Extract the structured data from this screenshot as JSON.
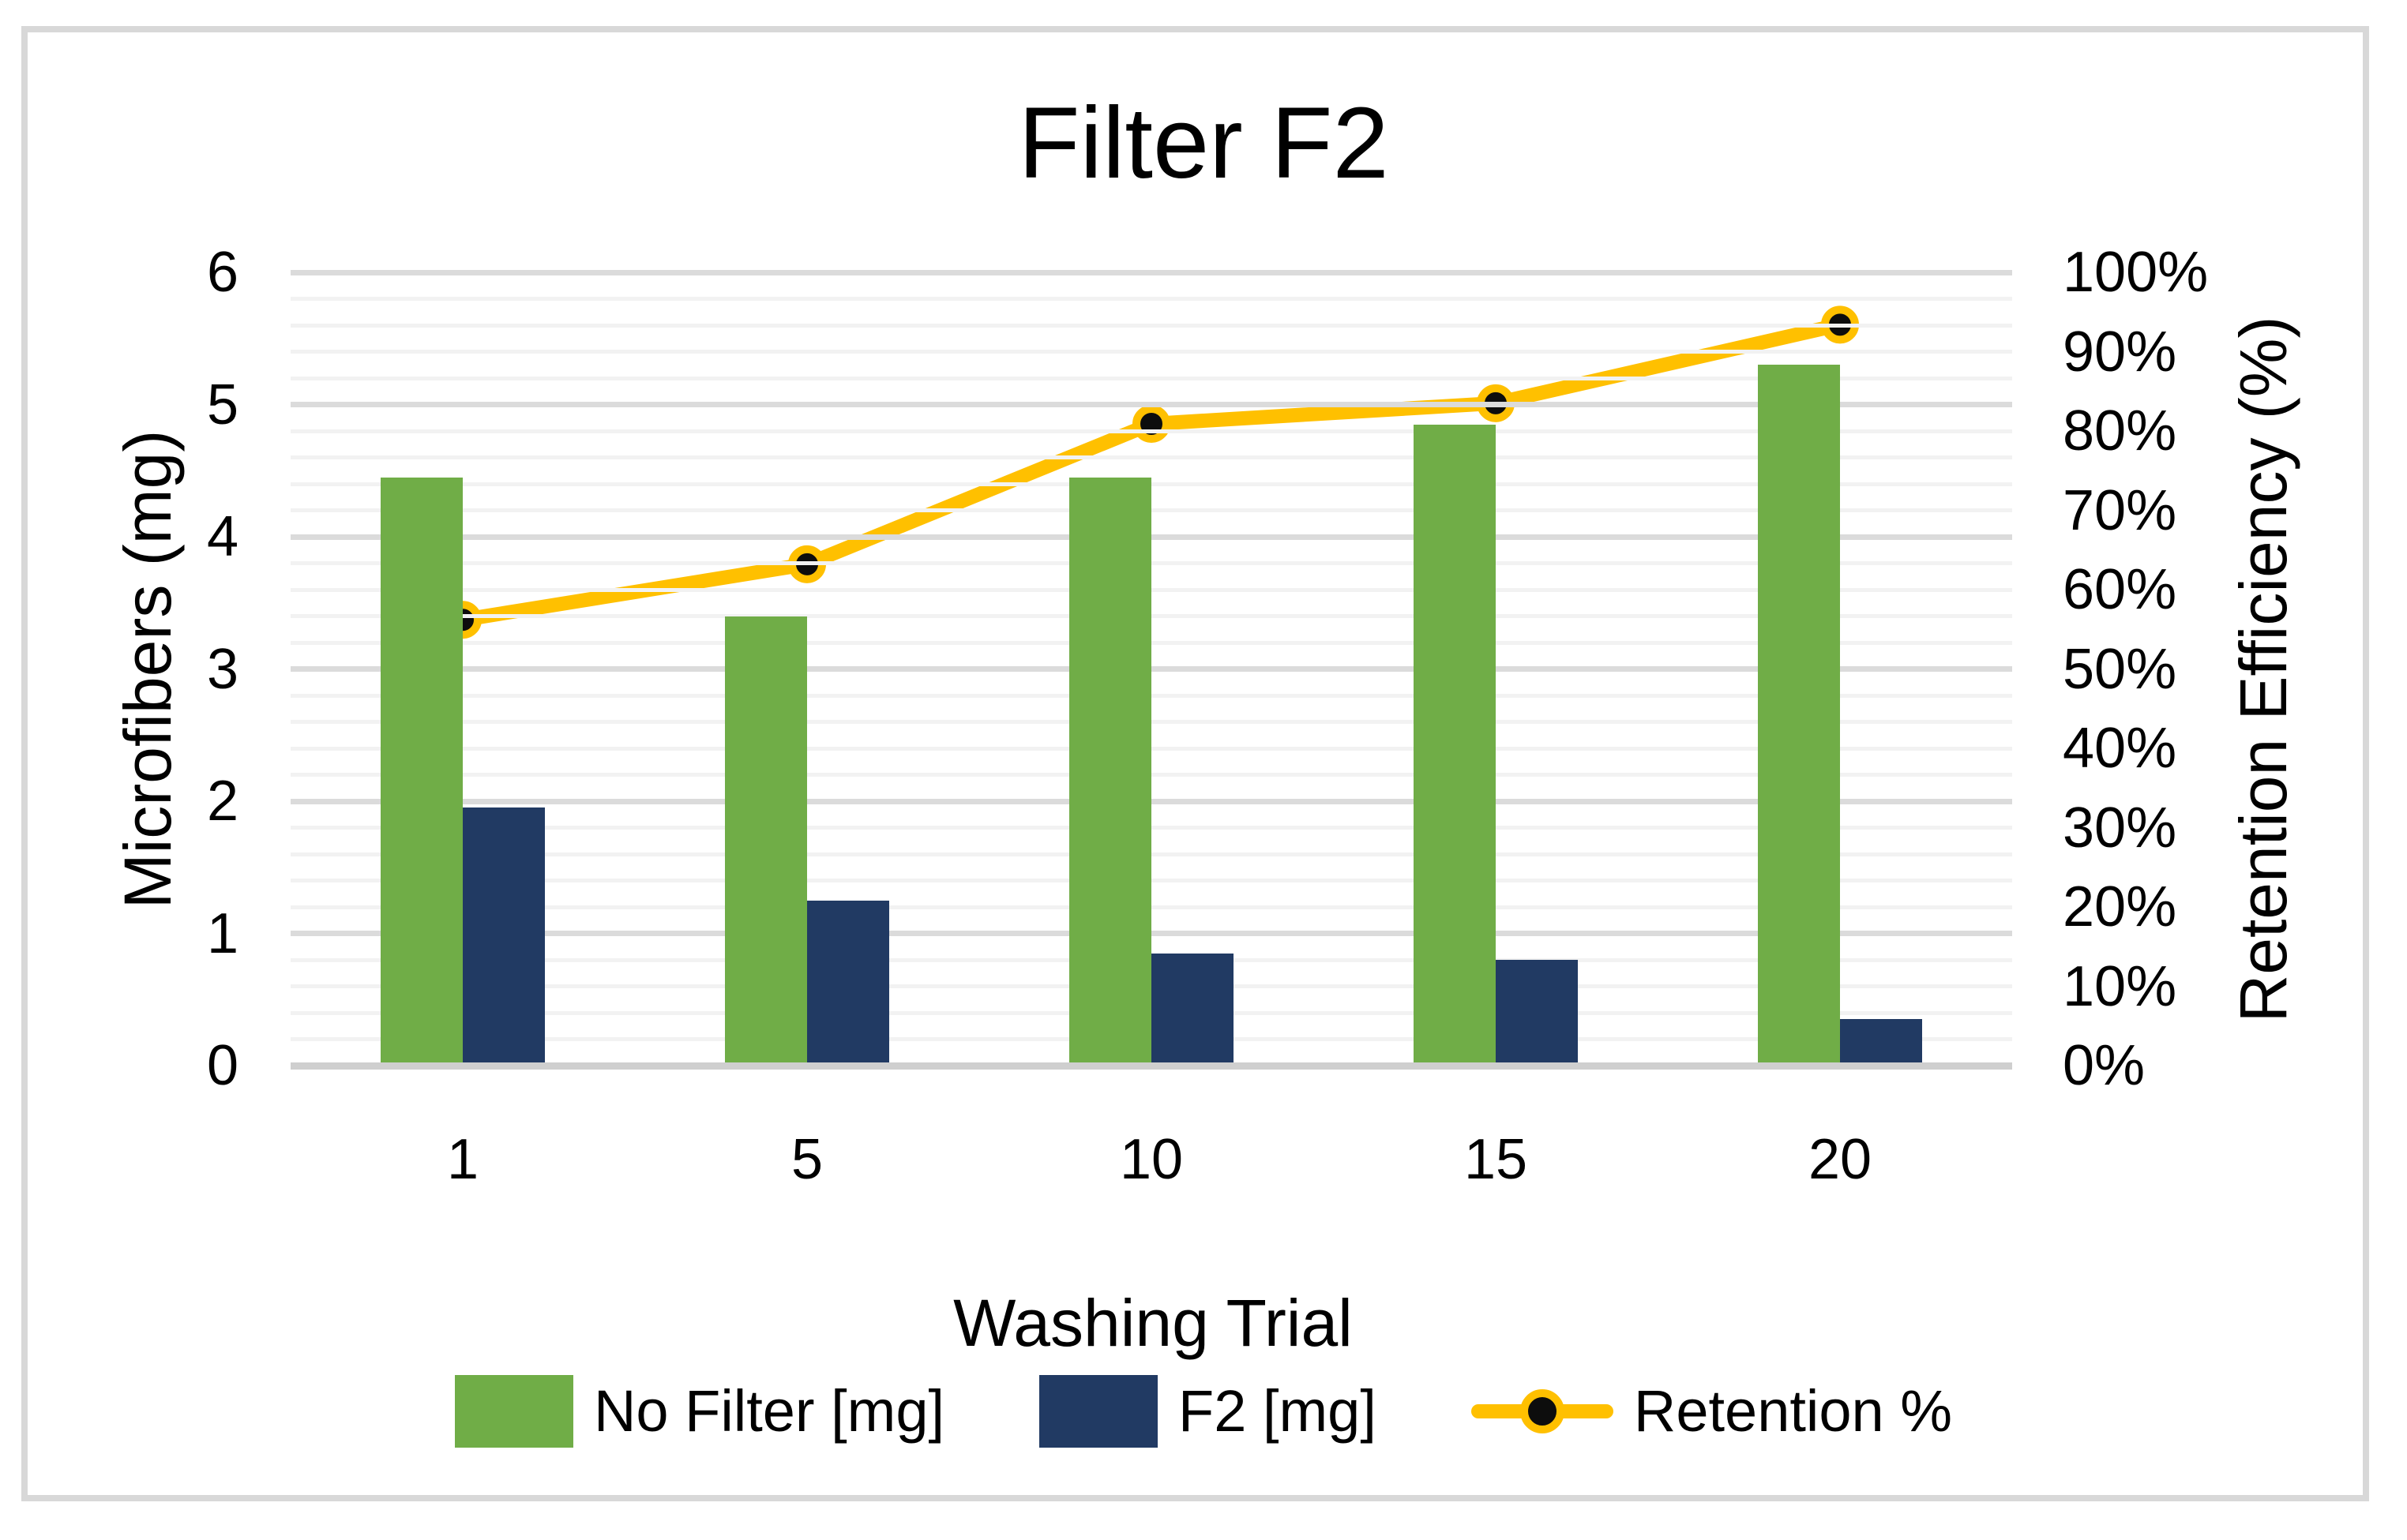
{
  "window": {
    "background": "#FFFFFF",
    "frame_border_color": "#D8D8D8"
  },
  "chart_data": {
    "type": "bar",
    "combo": "clustered columns + line on secondary axis",
    "title": "Filter F2",
    "xlabel": "Washing Trial",
    "ylabel_left": "Microfibers (mg)",
    "ylabel_right": "Retention Efficiency (%)",
    "categories": [
      "1",
      "5",
      "10",
      "15",
      "20"
    ],
    "series": [
      {
        "name": "No Filter [mg]",
        "type": "bar",
        "axis": "left",
        "color": "#70AD47",
        "values": [
          4.45,
          3.4,
          4.45,
          4.85,
          5.3
        ]
      },
      {
        "name": "F2 [mg]",
        "type": "bar",
        "axis": "left",
        "color": "#213A63",
        "values": [
          1.95,
          1.25,
          0.85,
          0.8,
          0.35
        ]
      },
      {
        "name": "Retention %",
        "type": "line",
        "axis": "right",
        "color": "#FFC000",
        "marker_fill": "#0D0D0D",
        "marker_ring": "#FFC000",
        "values": [
          56.2,
          63.2,
          80.9,
          83.5,
          93.4
        ]
      }
    ],
    "left_axis": {
      "min": 0,
      "max": 6,
      "ticks": [
        "0",
        "1",
        "2",
        "3",
        "4",
        "5",
        "6"
      ],
      "major_interval": 1,
      "minor_interval": 0.2
    },
    "right_axis": {
      "min": 0,
      "max": 100,
      "ticks": [
        "0%",
        "10%",
        "20%",
        "30%",
        "40%",
        "50%",
        "60%",
        "70%",
        "80%",
        "90%",
        "100%"
      ]
    },
    "grid": {
      "major_color": "#DBDBDB",
      "minor_color": "#F2F2F2",
      "axis_line_color": "#CFCFCF",
      "major_on": true,
      "minor_on": true
    },
    "legend_position": "bottom"
  }
}
